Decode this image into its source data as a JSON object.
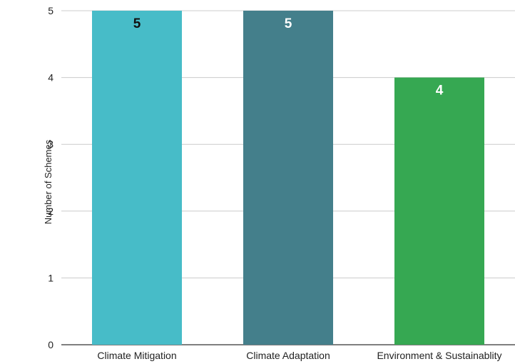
{
  "chart_data": {
    "type": "bar",
    "title": "",
    "xlabel": "",
    "ylabel": "Number of Schemes",
    "ylim": [
      0,
      5
    ],
    "yticks": [
      "0",
      "1",
      "2",
      "3",
      "4",
      "5"
    ],
    "grid": true,
    "categories": [
      "Climate Mitigation",
      "Climate Adaptation",
      "Environment & Sustainablity"
    ],
    "values": [
      5,
      5,
      4
    ],
    "data_labels": [
      "5",
      "5",
      "4"
    ],
    "colors": [
      "#47bcc8",
      "#447f8b",
      "#36a852"
    ],
    "label_colors": [
      "#111111",
      "#ffffff",
      "#ffffff"
    ]
  }
}
